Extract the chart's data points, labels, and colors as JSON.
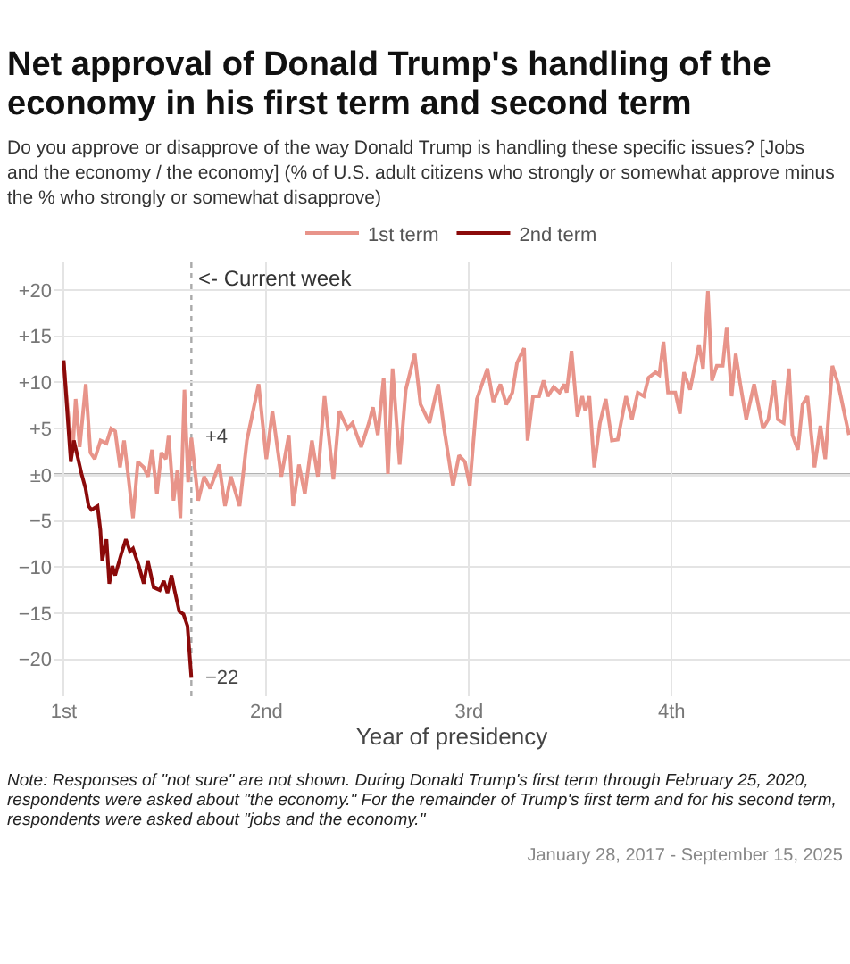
{
  "chart_data": {
    "type": "line",
    "title": "Net approval of Donald Trump's handling of the economy in his first term and second term",
    "subtitle": "Do you approve or disapprove of the way Donald Trump is handling these specific issues? [Jobs and the economy / the economy] (% of U.S. adult citizens who strongly or somewhat approve minus the % who strongly or somewhat disapprove)",
    "xlabel": "Year of presidency",
    "xlim": [
      0.95,
      4.88
    ],
    "xticks": [
      {
        "value": 1,
        "label": "1st"
      },
      {
        "value": 2,
        "label": "2nd"
      },
      {
        "value": 3,
        "label": "3rd"
      },
      {
        "value": 4,
        "label": "4th"
      }
    ],
    "ylim": [
      -24,
      23
    ],
    "yticks": [
      {
        "value": -20,
        "label": "−20"
      },
      {
        "value": -15,
        "label": "−15"
      },
      {
        "value": -10,
        "label": "−10"
      },
      {
        "value": -5,
        "label": "−5"
      },
      {
        "value": 0,
        "label": "±0"
      },
      {
        "value": 5,
        "label": "+5"
      },
      {
        "value": 10,
        "label": "+10"
      },
      {
        "value": 15,
        "label": "+15"
      },
      {
        "value": 20,
        "label": "+20"
      }
    ],
    "grid": true,
    "legend": "top",
    "series": [
      {
        "name": "1st term",
        "color": "#e8948a",
        "x": [
          1.0,
          1.021,
          1.044,
          1.059,
          1.079,
          1.109,
          1.132,
          1.153,
          1.182,
          1.211,
          1.234,
          1.254,
          1.278,
          1.298,
          1.322,
          1.342,
          1.366,
          1.395,
          1.416,
          1.436,
          1.46,
          1.482,
          1.504,
          1.518,
          1.542,
          1.561,
          1.576,
          1.596,
          1.614,
          1.63,
          1.664,
          1.693,
          1.723,
          1.767,
          1.796,
          1.825,
          1.868,
          1.904,
          1.962,
          2.0,
          2.03,
          2.074,
          2.111,
          2.132,
          2.161,
          2.19,
          2.225,
          2.254,
          2.287,
          2.331,
          2.36,
          2.401,
          2.425,
          2.468,
          2.506,
          2.526,
          2.55,
          2.579,
          2.6,
          2.623,
          2.658,
          2.688,
          2.732,
          2.761,
          2.805,
          2.828,
          2.848,
          2.877,
          2.921,
          2.951,
          2.98,
          3.004,
          3.039,
          3.091,
          3.12,
          3.155,
          3.184,
          3.214,
          3.237,
          3.272,
          3.289,
          3.316,
          3.346,
          3.368,
          3.389,
          3.418,
          3.447,
          3.471,
          3.482,
          3.506,
          3.535,
          3.559,
          3.574,
          3.594,
          3.618,
          3.646,
          3.675,
          3.705,
          3.734,
          3.775,
          3.804,
          3.833,
          3.863,
          3.886,
          3.921,
          3.939,
          3.96,
          3.982,
          4.018,
          4.041,
          4.061,
          4.091,
          4.135,
          4.155,
          4.179,
          4.199,
          4.223,
          4.252,
          4.272,
          4.296,
          4.316,
          4.339,
          4.368,
          4.407,
          4.451,
          4.477,
          4.506,
          4.524,
          4.553,
          4.579,
          4.596,
          4.623,
          4.646,
          4.67,
          4.705,
          4.734,
          4.758,
          4.793,
          4.822,
          4.875
        ],
        "values": [
          12.1,
          6.9,
          2.4,
          8.2,
          3.0,
          9.8,
          2.4,
          1.7,
          3.7,
          3.4,
          5.0,
          4.7,
          0.8,
          3.7,
          -0.8,
          -4.7,
          1.4,
          0.8,
          -0.2,
          2.7,
          -2.1,
          2.4,
          1.7,
          4.3,
          -2.8,
          0.5,
          -4.7,
          9.2,
          -0.8,
          4,
          -2.8,
          -0.2,
          -1.5,
          1.1,
          -3.4,
          -0.2,
          -3.4,
          3.7,
          9.8,
          1.7,
          6.9,
          -0.2,
          4.3,
          -3.4,
          1.1,
          -2.1,
          3.7,
          -0.2,
          8.5,
          -0.5,
          6.9,
          5.0,
          5.6,
          3.0,
          5.6,
          7.3,
          4.3,
          10.5,
          0.1,
          11.5,
          1.1,
          9.2,
          13.1,
          7.6,
          5.6,
          7.9,
          9.8,
          5.0,
          -1.2,
          2.1,
          1.4,
          -1.2,
          8.2,
          11.5,
          7.9,
          9.8,
          7.6,
          8.9,
          12.1,
          13.7,
          3.7,
          8.5,
          8.5,
          10.2,
          8.5,
          9.5,
          8.9,
          9.8,
          8.9,
          13.4,
          6.3,
          8.5,
          6.9,
          8.5,
          0.8,
          5.6,
          8.2,
          3.7,
          3.8,
          8.5,
          6.0,
          8.9,
          8.5,
          10.5,
          11.1,
          10.8,
          14.4,
          8.9,
          8.9,
          6.6,
          11.1,
          9.2,
          14.1,
          11.5,
          19.9,
          10.2,
          11.8,
          11.8,
          16.0,
          8.5,
          13.1,
          9.8,
          6.0,
          9.8,
          5.0,
          6.0,
          10.2,
          6.0,
          5.6,
          11.5,
          4.3,
          2.7,
          7.6,
          8.5,
          0.8,
          5.3,
          1.7,
          11.8,
          9.8,
          4.3
        ]
      },
      {
        "name": "2nd term",
        "color": "#8b0a0a",
        "x": [
          1.0,
          1.015,
          1.035,
          1.05,
          1.064,
          1.088,
          1.108,
          1.123,
          1.137,
          1.167,
          1.181,
          1.19,
          1.211,
          1.225,
          1.24,
          1.254,
          1.284,
          1.307,
          1.327,
          1.342,
          1.371,
          1.395,
          1.415,
          1.444,
          1.474,
          1.494,
          1.512,
          1.532,
          1.547,
          1.57,
          1.591,
          1.611,
          1.63
        ],
        "values": [
          12.4,
          7.6,
          1.4,
          3.7,
          2.4,
          0.1,
          -1.5,
          -3.4,
          -3.8,
          -3.4,
          -6.0,
          -9.3,
          -7.0,
          -11.8,
          -9.9,
          -10.9,
          -8.6,
          -7.0,
          -8.3,
          -8.0,
          -9.9,
          -11.8,
          -9.3,
          -12.2,
          -12.5,
          -11.5,
          -12.8,
          -10.9,
          -12.5,
          -14.8,
          -15.1,
          -16.4,
          -22
        ]
      }
    ],
    "ref_lines": [
      {
        "axis": "y",
        "value": 0,
        "color": "#999999",
        "line_style": "solid"
      },
      {
        "axis": "x",
        "value": 1.63,
        "label": "<- Current week",
        "color": "#aaaaaa",
        "line_style": "dotted"
      }
    ],
    "annotations": [
      {
        "text": "+4",
        "x": 1.63,
        "y": 4
      },
      {
        "text": "−22",
        "x": 1.63,
        "y": -22
      },
      "Note: Responses of \"not sure\" are not shown. During Donald Trump's first term through February 25, 2020, respondents were asked about \"the economy.\" For the remainder of Trump's first term and for his second term, respondents were asked about \"jobs and the economy.\"",
      "January 28, 2017 - September 15, 2025"
    ]
  }
}
